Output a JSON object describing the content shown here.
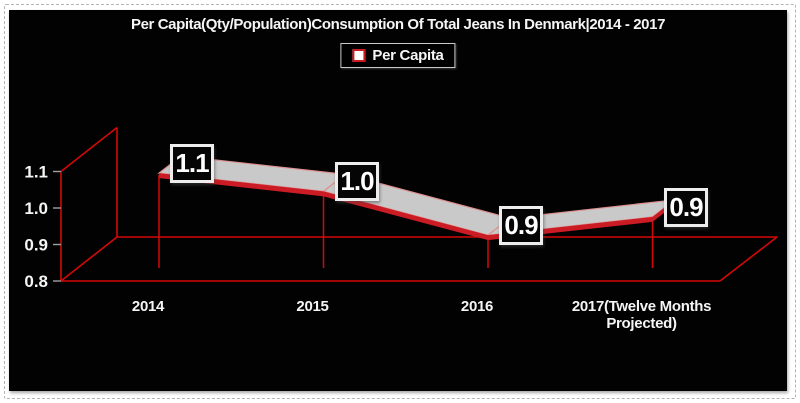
{
  "chart_data": {
    "type": "area",
    "presentation": "3d-ribbon-line",
    "title": "Per Capita(Qty/Population)Consumption Of Total Jeans In Denmark|2014 - 2017",
    "legend": {
      "position": "top",
      "entries": [
        "Per Capita"
      ]
    },
    "categories": [
      "2014",
      "2015",
      "2016",
      "2017(Twelve Months Projected)"
    ],
    "series": [
      {
        "name": "Per Capita",
        "values": [
          1.1,
          1.0,
          0.9,
          0.9
        ],
        "data_labels": [
          "1.1",
          "1.0",
          "0.9",
          "0.9"
        ],
        "plotted_values_estimate": [
          1.06,
          1.01,
          0.89,
          0.94
        ]
      }
    ],
    "y_axis": {
      "ticks": [
        "0.8",
        "0.9",
        "1.0",
        "1.1"
      ],
      "min": 0.8,
      "max": 1.1
    },
    "grid": false,
    "colors": {
      "background": "#020202",
      "axis": "#d40808",
      "tick": "#9f9f9f",
      "text": "#f5f5f5",
      "ribbon_fill": "#c9c9c9",
      "ribbon_edge": "#de9090",
      "ribbon_front": "#cb1b24",
      "label_box_border": "#ededed",
      "legend_border": "#c9c9c9",
      "legend_swatch_fill": "#ffffff",
      "legend_swatch_border": "#cb1b24"
    }
  }
}
